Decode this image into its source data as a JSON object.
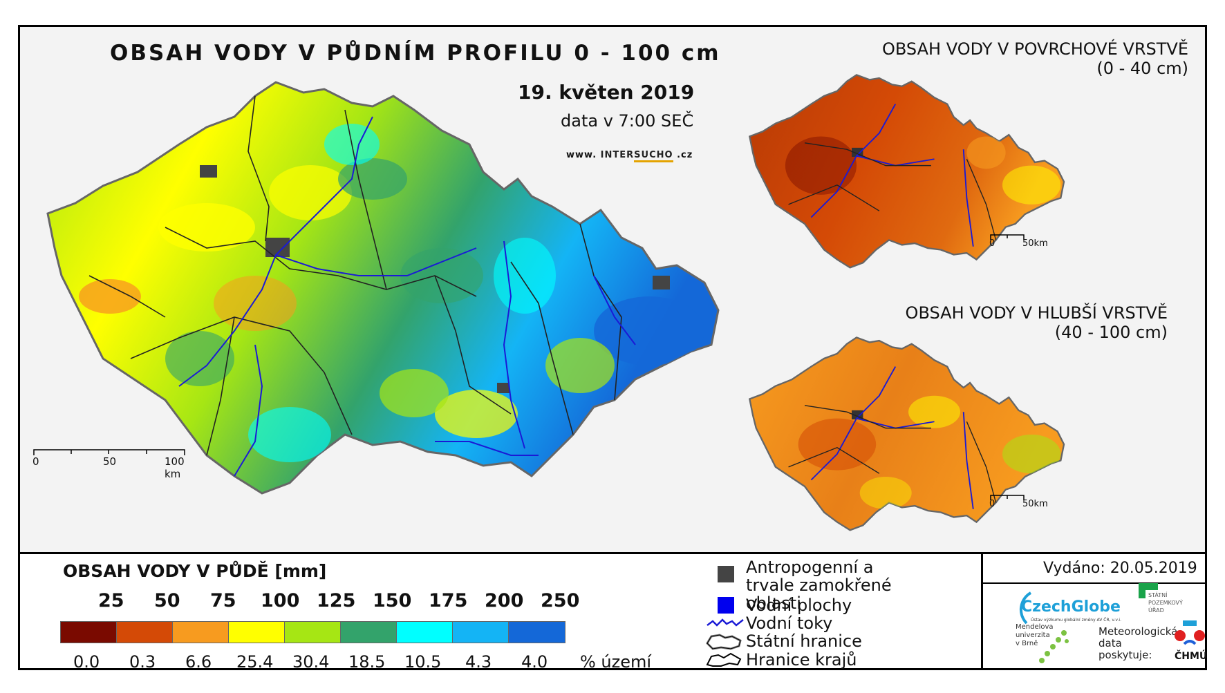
{
  "main": {
    "title": "OBSAH VODY V PŮDNÍM PROFILU 0 - 100 cm",
    "date": "19. květen 2019",
    "time": "data v 7:00 SEČ",
    "web_prefix": "www.",
    "web_name_a": "INTER",
    "web_name_b": "SUCHO",
    "web_suffix": ".cz"
  },
  "scale_main": {
    "label_0": "0",
    "label_50": "50",
    "label_100": "100 km"
  },
  "side_top": {
    "title_line1": "OBSAH VODY V POVRCHOVÉ VRSTVĚ",
    "title_line2": "(0 - 40 cm)",
    "scale_0": "0",
    "scale_50": "50km"
  },
  "side_bottom": {
    "title_line1": "OBSAH VODY V HLUBŠÍ VRSTVĚ",
    "title_line2": "(40 - 100 cm)",
    "scale_0": "0",
    "scale_50": "50km"
  },
  "legend": {
    "title": "OBSAH VODY V PŮDĚ [mm]",
    "bounds": [
      "25",
      "50",
      "75",
      "100",
      "125",
      "150",
      "175",
      "200",
      "250"
    ],
    "colors": [
      "#7a0a00",
      "#d44a06",
      "#f79b1f",
      "#ffff00",
      "#a6e614",
      "#33a36b",
      "#00ffff",
      "#14b4f5",
      "#1468d8"
    ],
    "percents": [
      "0.0",
      "0.3",
      "6.6",
      "25.4",
      "30.4",
      "18.5",
      "10.5",
      "4.3",
      "4.0"
    ],
    "percent_unit": "% území"
  },
  "symbols": {
    "anthropogenic": "Antropogenní a trvale zamokřené oblasti",
    "water_bodies": "Vodní plochy",
    "rivers": "Vodní toky",
    "state_border": "Státní hranice",
    "region_border": "Hranice krajů"
  },
  "issued": "Vydáno: 20.05.2019",
  "logos": {
    "czechglobe": "CzechGlobe",
    "czechglobe_sub": "Ústav výzkumu globální změny AV ČR, v.v.i.",
    "spu": "STÁTNÍ POZEMKOVÝ ÚŘAD",
    "mendel_line1": "Mendelova",
    "mendel_line2": "univerzita",
    "mendel_line3": "v Brně",
    "meteo_line1": "Meteorologická",
    "meteo_line2": "data",
    "meteo_line3": "poskytuje:",
    "chmu": "ČHMÚ"
  },
  "colors": {
    "accent_border": "#000000",
    "river": "#1a1ad6",
    "region_border": "#222222"
  }
}
